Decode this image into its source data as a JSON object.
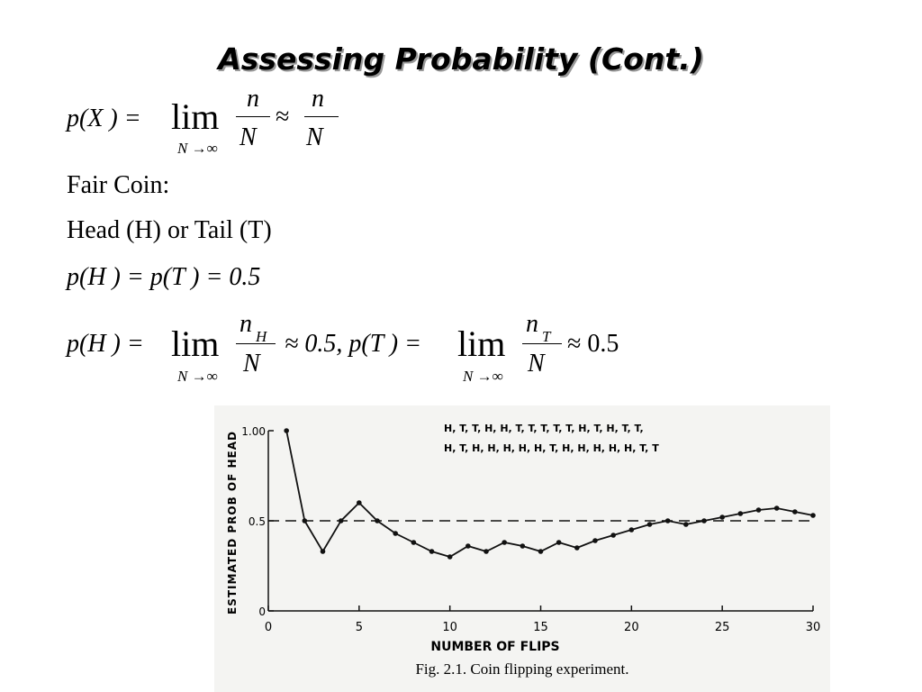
{
  "slide": {
    "title": "Assessing Probability (Cont.)",
    "eq1": {
      "lhs": "p(X ) =",
      "lim": "lim",
      "sub": "N →∞",
      "num": "n",
      "den": "N",
      "approx": "≈",
      "num2": "n",
      "den2": "N"
    },
    "line1": "Fair Coin:",
    "line2": "Head (H) or Tail (T)",
    "eq2": "p(H ) = p(T ) = 0.5",
    "eq3": {
      "lhs": "p(H ) =",
      "lim": "lim",
      "sub": "N →∞",
      "num": "n",
      "num_sub": "H",
      "den": "N",
      "mid": "≈ 0.5, p(T ) =",
      "lim2": "lim",
      "sub2": "N →∞",
      "num2": "n",
      "num2_sub": "T",
      "den2": "N",
      "tail": "≈ 0.5"
    }
  },
  "chart_data": {
    "type": "line",
    "xlabel": "NUMBER OF FLIPS",
    "ylabel": "ESTIMATED PROB OF HEAD",
    "caption": "Fig. 2.1. Coin flipping experiment.",
    "annotation": [
      "H, T, T, H, H, T, T, T, T, T, H, T, H, T, T,",
      "H, T, H, H, H, H, H, T, H, H, H, H, H, T, T"
    ],
    "x": [
      1,
      2,
      3,
      4,
      5,
      6,
      7,
      8,
      9,
      10,
      11,
      12,
      13,
      14,
      15,
      16,
      17,
      18,
      19,
      20,
      21,
      22,
      23,
      24,
      25,
      26,
      27,
      28,
      29,
      30
    ],
    "series": [
      {
        "name": "Estimated probability of head",
        "color": "#111111",
        "values": [
          1.0,
          0.5,
          0.33,
          0.5,
          0.6,
          0.5,
          0.43,
          0.38,
          0.33,
          0.3,
          0.36,
          0.33,
          0.38,
          0.36,
          0.33,
          0.38,
          0.35,
          0.39,
          0.42,
          0.45,
          0.48,
          0.5,
          0.48,
          0.5,
          0.52,
          0.54,
          0.56,
          0.57,
          0.55,
          0.53
        ]
      }
    ],
    "reference_line": 0.5,
    "xlim": [
      0,
      30
    ],
    "xticks": [
      0,
      5,
      10,
      15,
      20,
      25,
      30
    ],
    "ylim": [
      0,
      1
    ],
    "yticks": [
      0,
      0.5,
      {
        "value": 1,
        "label": "1.00"
      }
    ]
  }
}
